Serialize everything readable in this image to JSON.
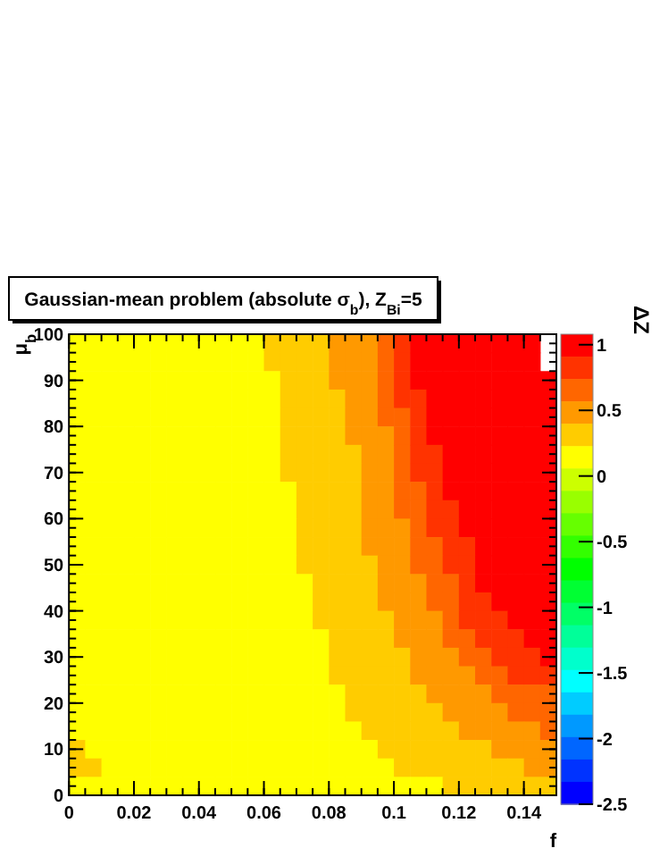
{
  "chart_data": {
    "type": "heatmap",
    "title": "Gaussian-mean problem (absolute σ$_{b}$), Z$_{Bi}$=5",
    "xlabel": "f",
    "ylabel": "μ$_{b}$",
    "clabel": "ΔZ",
    "xlim": [
      0,
      0.15
    ],
    "xticks": [
      0,
      0.02,
      0.04,
      0.06,
      0.08,
      0.1,
      0.12,
      0.14
    ],
    "ylim": [
      0,
      100
    ],
    "yticks": [
      0,
      10,
      20,
      30,
      40,
      50,
      60,
      70,
      80,
      90,
      100
    ],
    "clim": [
      -2.5,
      1.08
    ],
    "cticks": [
      -2.5,
      -2,
      -1.5,
      -1,
      -0.5,
      0,
      0.5,
      1
    ],
    "cells": [
      [
        0.1,
        0.1,
        0.1,
        0.1,
        0.1,
        0.1,
        0.1,
        0.1,
        0.1,
        0.1,
        0.1,
        0.1,
        0.3,
        0.3,
        0.3,
        0.3,
        0.5,
        0.5,
        0.5,
        0.65,
        0.8,
        1,
        1,
        1,
        1,
        1,
        1,
        1,
        1,
        null
      ],
      [
        0.1,
        0.1,
        0.1,
        0.1,
        0.1,
        0.1,
        0.1,
        0.1,
        0.1,
        0.1,
        0.1,
        0.1,
        0.3,
        0.3,
        0.3,
        0.3,
        0.5,
        0.5,
        0.5,
        0.65,
        0.8,
        1,
        1,
        1,
        1,
        1,
        1,
        1,
        1,
        null
      ],
      [
        0.1,
        0.1,
        0.1,
        0.1,
        0.1,
        0.1,
        0.1,
        0.1,
        0.1,
        0.1,
        0.1,
        0.1,
        0.1,
        0.3,
        0.3,
        0.3,
        0.5,
        0.5,
        0.5,
        0.65,
        0.8,
        1,
        1,
        1,
        1,
        1,
        1,
        1,
        1,
        1
      ],
      [
        0.1,
        0.1,
        0.1,
        0.1,
        0.1,
        0.1,
        0.1,
        0.1,
        0.1,
        0.1,
        0.1,
        0.1,
        0.1,
        0.3,
        0.3,
        0.3,
        0.3,
        0.5,
        0.5,
        0.65,
        0.8,
        0.8,
        1,
        1,
        1,
        1,
        1,
        1,
        1,
        1
      ],
      [
        0.1,
        0.1,
        0.1,
        0.1,
        0.1,
        0.1,
        0.1,
        0.1,
        0.1,
        0.1,
        0.1,
        0.1,
        0.1,
        0.3,
        0.3,
        0.3,
        0.3,
        0.5,
        0.5,
        0.65,
        0.65,
        0.8,
        1,
        1,
        1,
        1,
        1,
        1,
        1,
        1
      ],
      [
        0.1,
        0.1,
        0.1,
        0.1,
        0.1,
        0.1,
        0.1,
        0.1,
        0.1,
        0.1,
        0.1,
        0.1,
        0.1,
        0.3,
        0.3,
        0.3,
        0.3,
        0.5,
        0.5,
        0.5,
        0.65,
        0.8,
        1,
        1,
        1,
        1,
        1,
        1,
        1,
        1
      ],
      [
        0.1,
        0.1,
        0.1,
        0.1,
        0.1,
        0.1,
        0.1,
        0.1,
        0.1,
        0.1,
        0.1,
        0.1,
        0.1,
        0.3,
        0.3,
        0.3,
        0.3,
        0.3,
        0.5,
        0.5,
        0.65,
        0.8,
        0.8,
        1,
        1,
        1,
        1,
        1,
        1,
        1
      ],
      [
        0.1,
        0.1,
        0.1,
        0.1,
        0.1,
        0.1,
        0.1,
        0.1,
        0.1,
        0.1,
        0.1,
        0.1,
        0.1,
        0.3,
        0.3,
        0.3,
        0.3,
        0.3,
        0.5,
        0.5,
        0.65,
        0.8,
        0.8,
        1,
        1,
        1,
        1,
        1,
        1,
        1
      ],
      [
        0.1,
        0.1,
        0.1,
        0.1,
        0.1,
        0.1,
        0.1,
        0.1,
        0.1,
        0.1,
        0.1,
        0.1,
        0.1,
        0.1,
        0.3,
        0.3,
        0.3,
        0.3,
        0.5,
        0.5,
        0.65,
        0.65,
        0.8,
        1,
        1,
        1,
        1,
        1,
        1,
        1
      ],
      [
        0.1,
        0.1,
        0.1,
        0.1,
        0.1,
        0.1,
        0.1,
        0.1,
        0.1,
        0.1,
        0.1,
        0.1,
        0.1,
        0.1,
        0.3,
        0.3,
        0.3,
        0.3,
        0.5,
        0.5,
        0.65,
        0.65,
        0.8,
        0.8,
        1,
        1,
        1,
        1,
        1,
        1
      ],
      [
        0.1,
        0.1,
        0.1,
        0.1,
        0.1,
        0.1,
        0.1,
        0.1,
        0.1,
        0.1,
        0.1,
        0.1,
        0.1,
        0.1,
        0.3,
        0.3,
        0.3,
        0.3,
        0.5,
        0.5,
        0.5,
        0.65,
        0.8,
        0.8,
        1,
        1,
        1,
        1,
        1,
        1
      ],
      [
        0.1,
        0.1,
        0.1,
        0.1,
        0.1,
        0.1,
        0.1,
        0.1,
        0.1,
        0.1,
        0.1,
        0.1,
        0.1,
        0.1,
        0.3,
        0.3,
        0.3,
        0.3,
        0.5,
        0.5,
        0.5,
        0.65,
        0.65,
        0.8,
        0.8,
        1,
        1,
        1,
        1,
        1
      ],
      [
        0.1,
        0.1,
        0.1,
        0.1,
        0.1,
        0.1,
        0.1,
        0.1,
        0.1,
        0.1,
        0.1,
        0.1,
        0.1,
        0.1,
        0.3,
        0.3,
        0.3,
        0.3,
        0.3,
        0.5,
        0.5,
        0.65,
        0.65,
        0.8,
        0.8,
        1,
        1,
        1,
        1,
        1
      ],
      [
        0.1,
        0.1,
        0.1,
        0.1,
        0.1,
        0.1,
        0.1,
        0.1,
        0.1,
        0.1,
        0.1,
        0.1,
        0.1,
        0.1,
        0.1,
        0.3,
        0.3,
        0.3,
        0.3,
        0.5,
        0.5,
        0.5,
        0.65,
        0.65,
        0.8,
        1,
        1,
        1,
        1,
        1
      ],
      [
        0.1,
        0.1,
        0.1,
        0.1,
        0.1,
        0.1,
        0.1,
        0.1,
        0.1,
        0.1,
        0.1,
        0.1,
        0.1,
        0.1,
        0.1,
        0.3,
        0.3,
        0.3,
        0.3,
        0.5,
        0.5,
        0.5,
        0.65,
        0.65,
        0.8,
        0.8,
        1,
        1,
        1,
        1
      ],
      [
        0.1,
        0.1,
        0.1,
        0.1,
        0.1,
        0.1,
        0.1,
        0.1,
        0.1,
        0.1,
        0.1,
        0.1,
        0.1,
        0.1,
        0.1,
        0.3,
        0.3,
        0.3,
        0.3,
        0.3,
        0.5,
        0.5,
        0.5,
        0.65,
        0.8,
        0.8,
        0.8,
        1,
        1,
        1
      ],
      [
        0.1,
        0.1,
        0.1,
        0.1,
        0.1,
        0.1,
        0.1,
        0.1,
        0.1,
        0.1,
        0.1,
        0.1,
        0.1,
        0.1,
        0.1,
        0.1,
        0.3,
        0.3,
        0.3,
        0.3,
        0.5,
        0.5,
        0.5,
        0.65,
        0.65,
        0.8,
        0.8,
        0.8,
        1,
        1
      ],
      [
        0.1,
        0.1,
        0.1,
        0.1,
        0.1,
        0.1,
        0.1,
        0.1,
        0.1,
        0.1,
        0.1,
        0.1,
        0.1,
        0.1,
        0.1,
        0.1,
        0.3,
        0.3,
        0.3,
        0.3,
        0.3,
        0.5,
        0.5,
        0.5,
        0.65,
        0.65,
        0.8,
        0.8,
        0.8,
        1
      ],
      [
        0.1,
        0.1,
        0.1,
        0.1,
        0.1,
        0.1,
        0.1,
        0.1,
        0.1,
        0.1,
        0.1,
        0.1,
        0.1,
        0.1,
        0.1,
        0.1,
        0.3,
        0.3,
        0.3,
        0.3,
        0.3,
        0.5,
        0.5,
        0.5,
        0.5,
        0.65,
        0.65,
        0.8,
        0.8,
        0.8
      ],
      [
        0.1,
        0.1,
        0.1,
        0.1,
        0.1,
        0.1,
        0.1,
        0.1,
        0.1,
        0.1,
        0.1,
        0.1,
        0.1,
        0.1,
        0.1,
        0.1,
        0.1,
        0.3,
        0.3,
        0.3,
        0.3,
        0.3,
        0.5,
        0.5,
        0.5,
        0.5,
        0.65,
        0.65,
        0.65,
        0.65
      ],
      [
        0.1,
        0.1,
        0.1,
        0.1,
        0.1,
        0.1,
        0.1,
        0.1,
        0.1,
        0.1,
        0.1,
        0.1,
        0.1,
        0.1,
        0.1,
        0.1,
        0.1,
        0.3,
        0.3,
        0.3,
        0.3,
        0.3,
        0.3,
        0.5,
        0.5,
        0.5,
        0.5,
        0.65,
        0.65,
        0.65
      ],
      [
        0.1,
        0.1,
        0.1,
        0.1,
        0.1,
        0.1,
        0.1,
        0.1,
        0.1,
        0.1,
        0.1,
        0.1,
        0.1,
        0.1,
        0.1,
        0.1,
        0.1,
        0.1,
        0.3,
        0.3,
        0.3,
        0.3,
        0.3,
        0.3,
        0.5,
        0.5,
        0.5,
        0.5,
        0.5,
        0.65
      ],
      [
        0.3,
        0.1,
        0.1,
        0.1,
        0.1,
        0.1,
        0.1,
        0.1,
        0.1,
        0.1,
        0.1,
        0.1,
        0.1,
        0.1,
        0.1,
        0.1,
        0.1,
        0.1,
        0.1,
        0.3,
        0.3,
        0.3,
        0.3,
        0.3,
        0.3,
        0.3,
        0.5,
        0.5,
        0.5,
        0.5
      ],
      [
        0.3,
        0.3,
        0.1,
        0.1,
        0.1,
        0.1,
        0.1,
        0.1,
        0.1,
        0.1,
        0.1,
        0.1,
        0.1,
        0.1,
        0.1,
        0.1,
        0.1,
        0.1,
        0.1,
        0.1,
        0.3,
        0.3,
        0.3,
        0.3,
        0.3,
        0.3,
        0.3,
        0.3,
        0.5,
        0.5
      ],
      [
        0.1,
        0.1,
        0.1,
        0.1,
        0.1,
        0.1,
        0.1,
        0.1,
        0.1,
        0.1,
        0.1,
        0.1,
        0.1,
        0.1,
        0.1,
        0.1,
        0.1,
        0.1,
        0.1,
        0.1,
        0.1,
        0.1,
        0.1,
        0.3,
        0.3,
        0.3,
        0.3,
        0.3,
        0.3,
        0.3
      ]
    ]
  }
}
